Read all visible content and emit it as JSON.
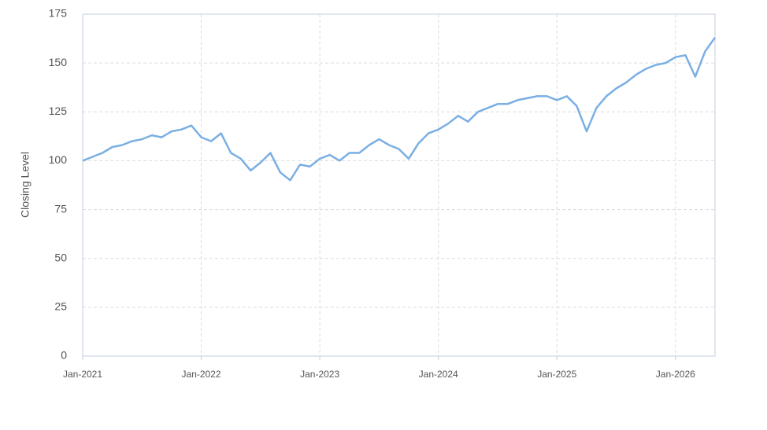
{
  "chart_data": {
    "type": "line",
    "y_label": "Closing Level",
    "x": [
      "2021-01",
      "2021-02",
      "2021-03",
      "2021-04",
      "2021-05",
      "2021-06",
      "2021-07",
      "2021-08",
      "2021-09",
      "2021-10",
      "2021-11",
      "2021-12",
      "2022-01",
      "2022-02",
      "2022-03",
      "2022-04",
      "2022-05",
      "2022-06",
      "2022-07",
      "2022-08",
      "2022-09",
      "2022-10",
      "2022-11",
      "2022-12",
      "2023-01",
      "2023-02",
      "2023-03",
      "2023-04",
      "2023-05",
      "2023-06",
      "2023-07",
      "2023-08",
      "2023-09",
      "2023-10",
      "2023-11",
      "2023-12",
      "2024-01",
      "2024-02",
      "2024-03",
      "2024-04",
      "2024-05",
      "2024-06",
      "2024-07",
      "2024-08",
      "2024-09",
      "2024-10",
      "2024-11",
      "2024-12",
      "2025-01",
      "2025-02",
      "2025-03",
      "2025-04",
      "2025-05",
      "2025-06",
      "2025-07",
      "2025-08",
      "2025-09",
      "2025-10",
      "2025-11",
      "2025-12",
      "2026-01",
      "2026-02",
      "2026-03",
      "2026-04",
      "2026-05"
    ],
    "series": [
      {
        "name": "Closing Level",
        "color": "#7aafe3",
        "values": [
          100,
          102,
          104,
          107,
          108,
          110,
          111,
          113,
          112,
          115,
          116,
          118,
          112,
          110,
          114,
          104,
          101,
          95,
          99,
          104,
          94,
          90,
          98,
          97,
          101,
          103,
          100,
          104,
          104,
          108,
          111,
          108,
          106,
          101,
          109,
          114,
          116,
          119,
          123,
          120,
          125,
          127,
          129,
          129,
          131,
          132,
          133,
          133,
          131,
          133,
          128,
          115,
          127,
          133,
          137,
          140,
          144,
          147,
          149,
          150,
          153,
          154,
          143,
          156,
          163
        ]
      }
    ],
    "xlim": [
      "2021-01",
      "2026-05"
    ],
    "xticks": [
      {
        "value": "2021-01",
        "label": "Jan-2021"
      },
      {
        "value": "2022-01",
        "label": "Jan-2022"
      },
      {
        "value": "2023-01",
        "label": "Jan-2023"
      },
      {
        "value": "2024-01",
        "label": "Jan-2024"
      },
      {
        "value": "2025-01",
        "label": "Jan-2025"
      },
      {
        "value": "2026-01",
        "label": "Jan-2026"
      }
    ],
    "ylim": [
      0,
      175
    ],
    "yticks": [
      0,
      25,
      50,
      75,
      100,
      125,
      150,
      175
    ],
    "grid": true
  }
}
